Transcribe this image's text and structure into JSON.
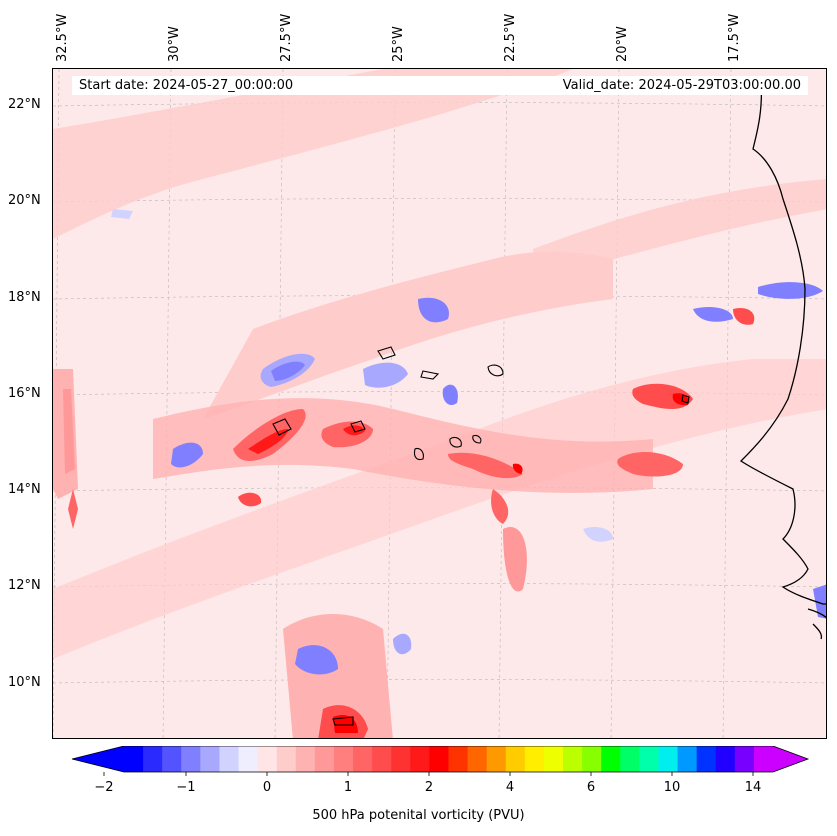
{
  "header": {
    "start_label": "Start date: 2024-05-27_00:00:00",
    "valid_label": "Valid_date: 2024-05-29T03:00:00.00"
  },
  "longitude_labels": [
    "32.5°W",
    "30°W",
    "27.5°W",
    "25°W",
    "22.5°W",
    "20°W",
    "17.5°W"
  ],
  "latitude_labels": [
    "22°N",
    "20°N",
    "18°N",
    "16°N",
    "14°N",
    "12°N",
    "10°N"
  ],
  "field": {
    "variable": "500 hPa potenital vorticity (PVU)",
    "palette": [
      "#0000ff",
      "#2a2aff",
      "#5353ff",
      "#7f7fff",
      "#a8a8ff",
      "#d2d2ff",
      "#eeeeff",
      "#ffe5e5",
      "#ffcccc",
      "#ffb2b2",
      "#ff9898",
      "#ff7f7f",
      "#ff6565",
      "#ff4c4c",
      "#ff3232",
      "#ff1919",
      "#ff0000",
      "#ff3300",
      "#ff6600",
      "#ff9900",
      "#ffcc00",
      "#ffee00",
      "#eeff00",
      "#bbff00",
      "#88ff00",
      "#00ff00",
      "#00ff66",
      "#00ffaa",
      "#00eeee",
      "#0099ff",
      "#0033ff",
      "#2200ff",
      "#7700ff",
      "#cc00ff"
    ],
    "under_color": "#0000ff",
    "over_color": "#cc00ff",
    "background_color": "#fde9ea"
  },
  "colorbar": {
    "tick_labels": [
      "−2",
      "−1",
      "0",
      "1",
      "2",
      "4",
      "6",
      "10",
      "14"
    ],
    "title": "500 hPa potenital vorticity (PVU)"
  }
}
